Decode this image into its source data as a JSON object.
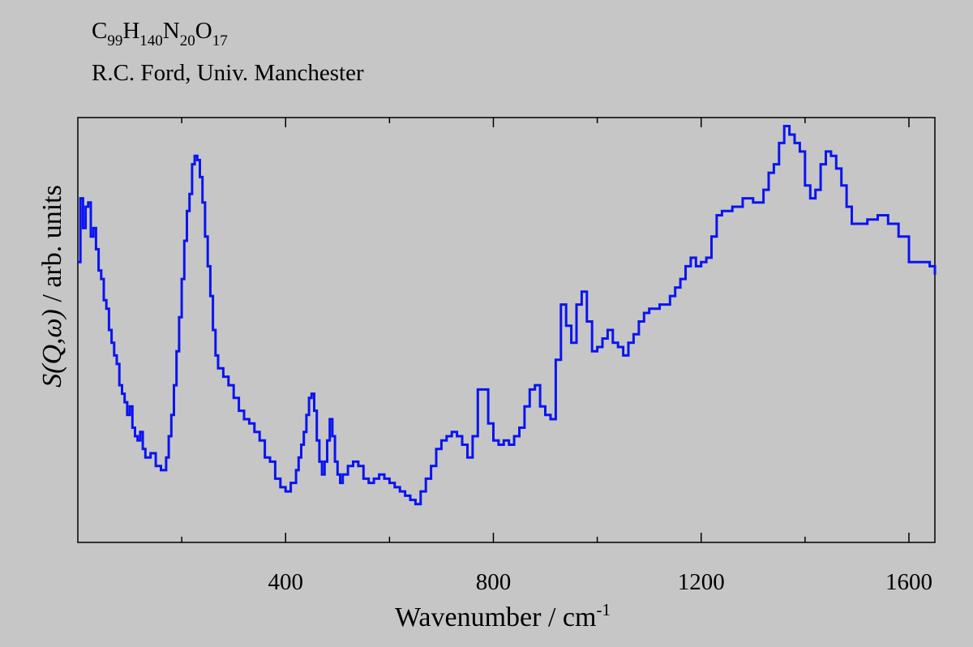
{
  "header": {
    "formula": [
      {
        "t": "C",
        "sub": "99"
      },
      {
        "t": "H",
        "sub": "140"
      },
      {
        "t": "N",
        "sub": "20"
      },
      {
        "t": "O",
        "sub": "17"
      }
    ],
    "attribution": "R.C. Ford, Univ. Manchester"
  },
  "colors": {
    "background": "#c6c6c6",
    "series": "#0a14f0",
    "axis": "#000000"
  },
  "chart_data": {
    "type": "line",
    "style": "step",
    "title": "",
    "xlabel_main": "Wavenumber / cm",
    "xlabel_sup": "-1",
    "ylabel_prefix": "S(Q,ω)",
    "ylabel_rest": " / arb. units",
    "xlim": [
      0,
      1650
    ],
    "ylim": [
      0,
      1
    ],
    "x_ticks": [
      400,
      800,
      1200,
      1600
    ],
    "x_minor_ticks": [
      200,
      600,
      1000,
      1400
    ],
    "grid": false,
    "legend": "none",
    "series": [
      {
        "points": [
          [
            0,
            0.66
          ],
          [
            5,
            0.81
          ],
          [
            10,
            0.74
          ],
          [
            15,
            0.79
          ],
          [
            20,
            0.8
          ],
          [
            25,
            0.72
          ],
          [
            30,
            0.74
          ],
          [
            35,
            0.69
          ],
          [
            40,
            0.64
          ],
          [
            45,
            0.62
          ],
          [
            50,
            0.57
          ],
          [
            55,
            0.55
          ],
          [
            60,
            0.5
          ],
          [
            65,
            0.47
          ],
          [
            70,
            0.44
          ],
          [
            75,
            0.42
          ],
          [
            80,
            0.37
          ],
          [
            85,
            0.35
          ],
          [
            90,
            0.33
          ],
          [
            95,
            0.3
          ],
          [
            100,
            0.32
          ],
          [
            105,
            0.27
          ],
          [
            110,
            0.25
          ],
          [
            115,
            0.24
          ],
          [
            120,
            0.26
          ],
          [
            125,
            0.22
          ],
          [
            130,
            0.2
          ],
          [
            140,
            0.21
          ],
          [
            150,
            0.18
          ],
          [
            160,
            0.17
          ],
          [
            170,
            0.2
          ],
          [
            175,
            0.25
          ],
          [
            180,
            0.3
          ],
          [
            185,
            0.37
          ],
          [
            190,
            0.45
          ],
          [
            195,
            0.53
          ],
          [
            200,
            0.62
          ],
          [
            205,
            0.71
          ],
          [
            210,
            0.78
          ],
          [
            215,
            0.82
          ],
          [
            220,
            0.89
          ],
          [
            225,
            0.91
          ],
          [
            230,
            0.9
          ],
          [
            235,
            0.86
          ],
          [
            240,
            0.8
          ],
          [
            245,
            0.72
          ],
          [
            250,
            0.65
          ],
          [
            255,
            0.58
          ],
          [
            260,
            0.5
          ],
          [
            265,
            0.44
          ],
          [
            270,
            0.41
          ],
          [
            280,
            0.39
          ],
          [
            290,
            0.37
          ],
          [
            300,
            0.34
          ],
          [
            310,
            0.31
          ],
          [
            320,
            0.29
          ],
          [
            330,
            0.28
          ],
          [
            340,
            0.26
          ],
          [
            350,
            0.24
          ],
          [
            360,
            0.2
          ],
          [
            370,
            0.19
          ],
          [
            380,
            0.15
          ],
          [
            390,
            0.13
          ],
          [
            400,
            0.12
          ],
          [
            410,
            0.14
          ],
          [
            420,
            0.17
          ],
          [
            425,
            0.2
          ],
          [
            430,
            0.23
          ],
          [
            435,
            0.26
          ],
          [
            440,
            0.3
          ],
          [
            445,
            0.34
          ],
          [
            450,
            0.35
          ],
          [
            455,
            0.31
          ],
          [
            460,
            0.24
          ],
          [
            465,
            0.19
          ],
          [
            470,
            0.16
          ],
          [
            475,
            0.19
          ],
          [
            480,
            0.24
          ],
          [
            485,
            0.29
          ],
          [
            490,
            0.25
          ],
          [
            495,
            0.19
          ],
          [
            500,
            0.16
          ],
          [
            505,
            0.14
          ],
          [
            510,
            0.16
          ],
          [
            520,
            0.18
          ],
          [
            530,
            0.19
          ],
          [
            540,
            0.18
          ],
          [
            550,
            0.15
          ],
          [
            560,
            0.14
          ],
          [
            570,
            0.15
          ],
          [
            580,
            0.16
          ],
          [
            590,
            0.15
          ],
          [
            600,
            0.14
          ],
          [
            610,
            0.13
          ],
          [
            620,
            0.12
          ],
          [
            630,
            0.11
          ],
          [
            640,
            0.1
          ],
          [
            650,
            0.09
          ],
          [
            660,
            0.12
          ],
          [
            670,
            0.15
          ],
          [
            680,
            0.18
          ],
          [
            690,
            0.22
          ],
          [
            700,
            0.24
          ],
          [
            710,
            0.25
          ],
          [
            720,
            0.26
          ],
          [
            730,
            0.25
          ],
          [
            740,
            0.23
          ],
          [
            750,
            0.2
          ],
          [
            760,
            0.25
          ],
          [
            770,
            0.36
          ],
          [
            780,
            0.36
          ],
          [
            790,
            0.28
          ],
          [
            800,
            0.24
          ],
          [
            810,
            0.23
          ],
          [
            820,
            0.24
          ],
          [
            830,
            0.23
          ],
          [
            840,
            0.25
          ],
          [
            850,
            0.27
          ],
          [
            860,
            0.32
          ],
          [
            870,
            0.36
          ],
          [
            880,
            0.37
          ],
          [
            890,
            0.32
          ],
          [
            900,
            0.3
          ],
          [
            910,
            0.29
          ],
          [
            920,
            0.43
          ],
          [
            930,
            0.56
          ],
          [
            940,
            0.51
          ],
          [
            950,
            0.47
          ],
          [
            960,
            0.56
          ],
          [
            970,
            0.59
          ],
          [
            980,
            0.52
          ],
          [
            990,
            0.45
          ],
          [
            1000,
            0.46
          ],
          [
            1010,
            0.48
          ],
          [
            1020,
            0.5
          ],
          [
            1030,
            0.47
          ],
          [
            1040,
            0.46
          ],
          [
            1050,
            0.44
          ],
          [
            1060,
            0.47
          ],
          [
            1070,
            0.49
          ],
          [
            1080,
            0.52
          ],
          [
            1090,
            0.54
          ],
          [
            1100,
            0.55
          ],
          [
            1120,
            0.56
          ],
          [
            1140,
            0.58
          ],
          [
            1150,
            0.6
          ],
          [
            1160,
            0.62
          ],
          [
            1170,
            0.65
          ],
          [
            1180,
            0.67
          ],
          [
            1190,
            0.65
          ],
          [
            1200,
            0.66
          ],
          [
            1210,
            0.67
          ],
          [
            1220,
            0.72
          ],
          [
            1230,
            0.77
          ],
          [
            1240,
            0.78
          ],
          [
            1260,
            0.79
          ],
          [
            1280,
            0.81
          ],
          [
            1300,
            0.8
          ],
          [
            1320,
            0.83
          ],
          [
            1330,
            0.87
          ],
          [
            1340,
            0.89
          ],
          [
            1350,
            0.94
          ],
          [
            1360,
            0.98
          ],
          [
            1370,
            0.96
          ],
          [
            1380,
            0.94
          ],
          [
            1390,
            0.92
          ],
          [
            1400,
            0.84
          ],
          [
            1410,
            0.81
          ],
          [
            1420,
            0.83
          ],
          [
            1430,
            0.89
          ],
          [
            1440,
            0.92
          ],
          [
            1450,
            0.91
          ],
          [
            1460,
            0.88
          ],
          [
            1470,
            0.84
          ],
          [
            1480,
            0.79
          ],
          [
            1490,
            0.75
          ],
          [
            1500,
            0.75
          ],
          [
            1520,
            0.76
          ],
          [
            1540,
            0.77
          ],
          [
            1560,
            0.75
          ],
          [
            1580,
            0.72
          ],
          [
            1600,
            0.66
          ],
          [
            1620,
            0.66
          ],
          [
            1640,
            0.65
          ],
          [
            1650,
            0.63
          ]
        ]
      }
    ]
  }
}
